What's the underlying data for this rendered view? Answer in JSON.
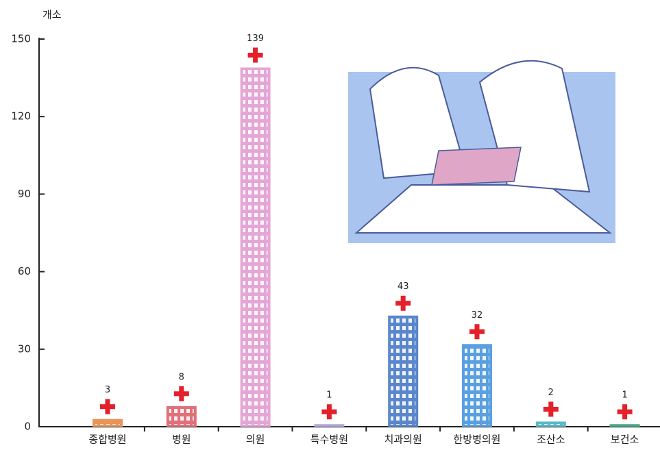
{
  "chart_data": {
    "type": "bar",
    "y_label": "개소",
    "categories": [
      "종합병원",
      "병원",
      "의원",
      "특수병원",
      "치과의원",
      "한방병의원",
      "조산소",
      "보건소"
    ],
    "values": [
      3,
      8,
      139,
      1,
      43,
      32,
      2,
      1
    ],
    "colors": [
      "#e8955a",
      "#e0707a",
      "#e4a6d6",
      "#b0a8d8",
      "#5a86cc",
      "#5aa0e0",
      "#5ab8c8",
      "#4aaa88"
    ],
    "ylim": [
      0,
      150
    ],
    "yticks": [
      0,
      30,
      60,
      90,
      120,
      150
    ]
  }
}
